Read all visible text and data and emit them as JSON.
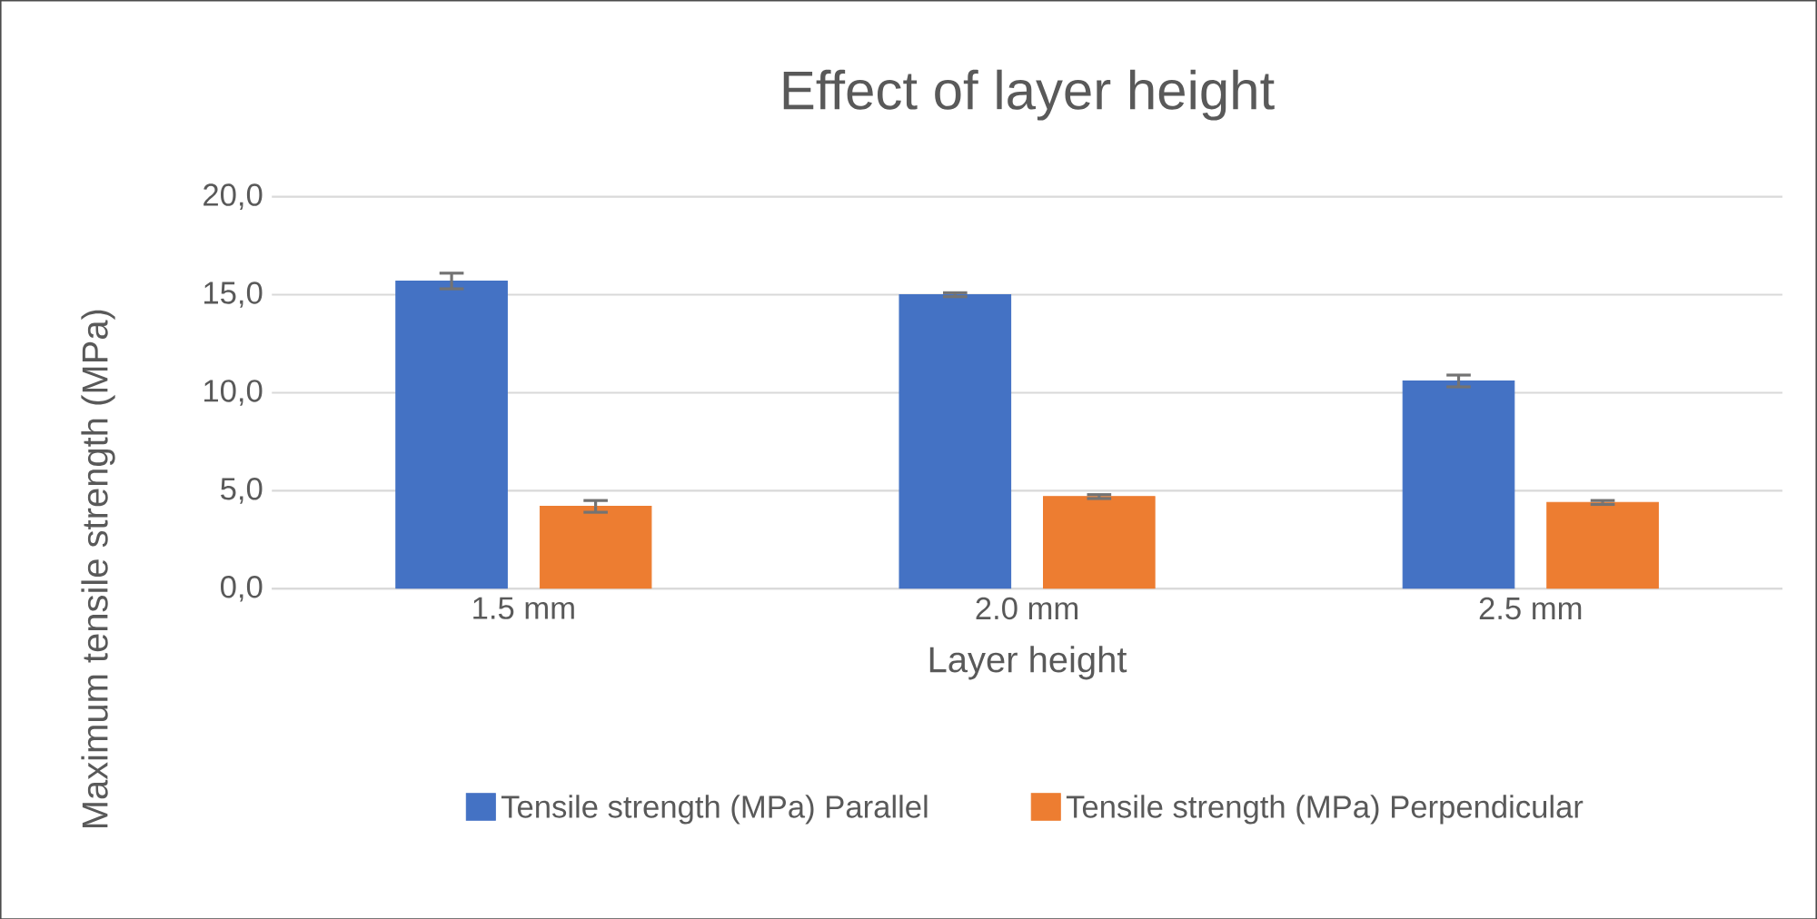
{
  "chart_data": {
    "type": "bar",
    "title": "Effect of layer height",
    "xlabel": "Layer height",
    "ylabel": "Maximum tensile strength (MPa)",
    "categories": [
      "1.5 mm",
      "2.0 mm",
      "2.5 mm"
    ],
    "series": [
      {
        "name": "Tensile strength (MPa) Parallel",
        "color": "#4472c4",
        "values": [
          15.7,
          15.0,
          10.6
        ],
        "errors": [
          0.4,
          0.1,
          0.3
        ]
      },
      {
        "name": "Tensile strength (MPa) Perpendicular",
        "color": "#ed7d31",
        "values": [
          4.2,
          4.7,
          4.4
        ],
        "errors": [
          0.3,
          0.1,
          0.1
        ]
      }
    ],
    "ylim": [
      0,
      20
    ],
    "yticks": [
      {
        "value": 0,
        "label": "0,0"
      },
      {
        "value": 5,
        "label": "5,0"
      },
      {
        "value": 10,
        "label": "10,0"
      },
      {
        "value": 15,
        "label": "15,0"
      },
      {
        "value": 20,
        "label": "20,0"
      }
    ],
    "grid": "y",
    "legend": "bottom"
  }
}
